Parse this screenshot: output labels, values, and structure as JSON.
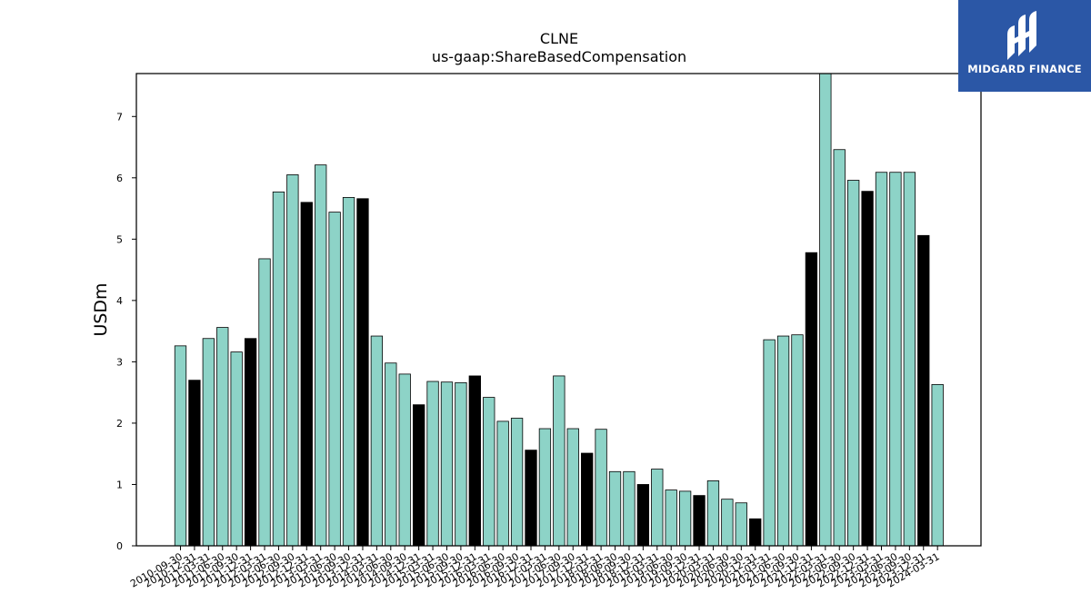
{
  "logo": {
    "text": "MIDGARD FINANCE"
  },
  "colors": {
    "bar_default": "#8dd3c7",
    "bar_highlight": "#000000",
    "logo_bg": "#2b57a6"
  },
  "chart_data": {
    "type": "bar",
    "title": "CLNE",
    "subtitle": "us-gaap:ShareBasedCompensation",
    "ylabel": "USDm",
    "xlabel": "",
    "ylim": [
      0,
      7.7
    ],
    "yticks": [
      0,
      1,
      2,
      3,
      4,
      5,
      6,
      7
    ],
    "grid": false,
    "categories": [
      "2010-09-30",
      "2010-12-31",
      "2011-03-31",
      "2011-06-30",
      "2011-09-30",
      "2011-12-31",
      "2012-03-31",
      "2012-06-30",
      "2012-09-30",
      "2012-12-31",
      "2013-03-31",
      "2013-06-30",
      "2013-09-30",
      "2013-12-31",
      "2014-03-31",
      "2014-06-30",
      "2014-09-30",
      "2014-12-31",
      "2015-03-31",
      "2015-06-30",
      "2015-09-30",
      "2015-12-31",
      "2016-03-31",
      "2016-06-30",
      "2016-09-30",
      "2016-12-31",
      "2017-03-31",
      "2017-06-30",
      "2017-09-30",
      "2017-12-31",
      "2018-03-31",
      "2018-06-30",
      "2018-09-30",
      "2018-12-31",
      "2019-03-31",
      "2019-06-30",
      "2019-09-30",
      "2019-12-31",
      "2020-03-31",
      "2020-06-30",
      "2020-09-30",
      "2020-12-31",
      "2021-03-31",
      "2021-06-30",
      "2021-09-30",
      "2021-12-31",
      "2022-03-31",
      "2022-06-30",
      "2022-09-30",
      "2022-12-31",
      "2023-03-31",
      "2023-06-30",
      "2023-09-30",
      "2023-12-31",
      "2024-03-31"
    ],
    "values": [
      3.26,
      2.7,
      3.38,
      3.56,
      3.16,
      3.38,
      4.68,
      5.77,
      6.05,
      5.6,
      6.21,
      5.44,
      5.68,
      5.66,
      3.42,
      2.98,
      2.8,
      2.3,
      2.68,
      2.67,
      2.66,
      2.77,
      2.42,
      2.03,
      2.08,
      1.56,
      1.91,
      2.77,
      1.91,
      1.51,
      1.9,
      1.21,
      1.21,
      1.0,
      1.25,
      0.91,
      0.89,
      0.82,
      1.06,
      0.76,
      0.7,
      0.44,
      3.36,
      3.42,
      3.44,
      4.78,
      7.7,
      6.46,
      5.96,
      5.78,
      6.09,
      6.09,
      6.09,
      5.06,
      2.63
    ],
    "highlight_categories": [
      "2010-12-31",
      "2011-12-31",
      "2012-12-31",
      "2013-12-31",
      "2014-12-31",
      "2015-12-31",
      "2016-12-31",
      "2017-12-31",
      "2018-12-31",
      "2019-12-31",
      "2020-12-31",
      "2021-12-31",
      "2022-12-31",
      "2023-12-31"
    ]
  }
}
